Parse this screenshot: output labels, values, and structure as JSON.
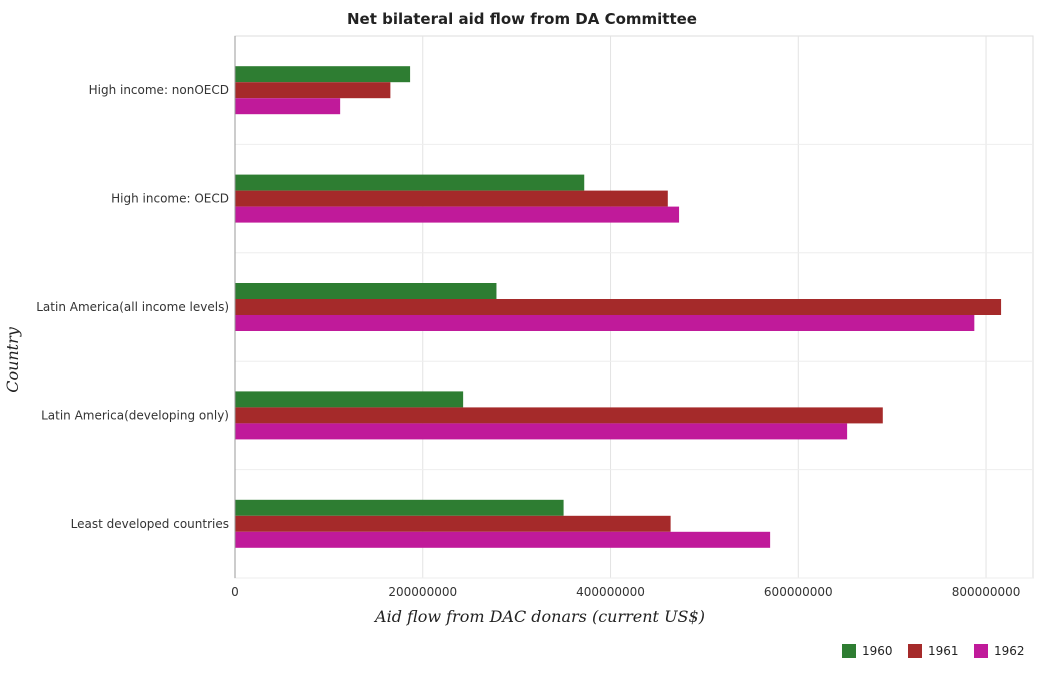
{
  "chart_data": {
    "type": "bar",
    "orientation": "horizontal",
    "title": "Net bilateral aid flow from DA Committee",
    "xlabel": "Aid flow from DAC donars (current US$)",
    "ylabel": "Country",
    "xlim": [
      0,
      850000000
    ],
    "xticks": [
      0,
      200000000,
      400000000,
      600000000,
      800000000
    ],
    "xtick_labels": [
      "0",
      "200000000",
      "400000000",
      "600000000",
      "800000000"
    ],
    "grid": true,
    "legend_position": "bottom-right",
    "categories": [
      "High income: nonOECD",
      "High income: OECD",
      "Latin America(all income levels)",
      "Latin America(developing only)",
      "Least developed countries"
    ],
    "series": [
      {
        "name": "1960",
        "color": "#2e7d32",
        "values": [
          186500000,
          372000000,
          278500000,
          243000000,
          350000000
        ]
      },
      {
        "name": "1961",
        "color": "#a52a2a",
        "values": [
          165500000,
          461000000,
          816000000,
          690000000,
          464000000
        ]
      },
      {
        "name": "1962",
        "color": "#c01a9a",
        "values": [
          112000000,
          473000000,
          787500000,
          652000000,
          570000000
        ]
      }
    ]
  }
}
